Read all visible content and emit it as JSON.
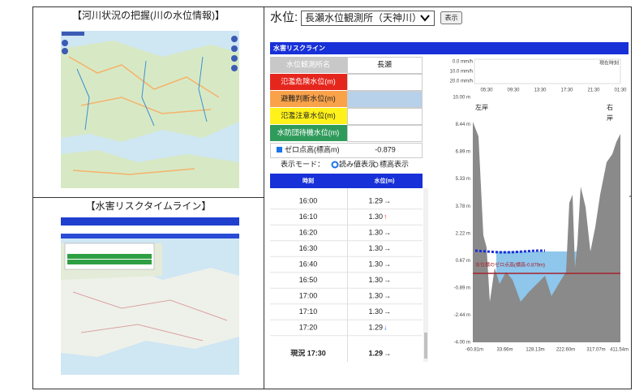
{
  "left_panel": {
    "river_title": "【河川状況の把握(川の水位情報)】",
    "timeline_title": "【水害リスクタイムライン】"
  },
  "station_selector": {
    "label": "水位:",
    "selected": "長瀬水位観測所（天神川）",
    "button": "表示"
  },
  "risk_line": {
    "title": "水害リスクライン",
    "header": [
      "水位観測所名",
      "長瀬"
    ],
    "levels": [
      "氾濫危険水位(m)",
      "避難判断水位(m)",
      "氾濫注意水位(m)",
      "水防団待機水位(m)"
    ],
    "zero_point": {
      "label": "ゼロ点高(標高m)",
      "value": "-0.879"
    },
    "display_mode": {
      "label": "表示モード：",
      "options": [
        "読み値表示",
        "標高表示"
      ]
    }
  },
  "timeline_table": {
    "header": [
      "時刻",
      "水位(m)"
    ],
    "rows": [
      [
        "16:00",
        "1.29",
        "→"
      ],
      [
        "16:10",
        "1.30",
        "↑"
      ],
      [
        "16:20",
        "1.30",
        "→"
      ],
      [
        "16:30",
        "1.30",
        "→"
      ],
      [
        "16:40",
        "1.30",
        "→"
      ],
      [
        "16:50",
        "1.30",
        "→"
      ],
      [
        "17:00",
        "1.30",
        "→"
      ],
      [
        "17:10",
        "1.30",
        "→"
      ],
      [
        "17:20",
        "1.29",
        "↓"
      ]
    ],
    "current": [
      "現況 17:30",
      "1.29",
      "→"
    ]
  },
  "rain_chart": {
    "y_labels": [
      "0.0 mm/h",
      "10.0 mm/h",
      "20.0 mm/h"
    ],
    "now_label": "現在時刻",
    "x_labels": [
      "05:30",
      "09:30",
      "13:30",
      "17:30",
      "21:30",
      "01:30"
    ]
  },
  "cross_section": {
    "y_labels": [
      "10.00 m",
      "8.44 m",
      "6.89 m",
      "5.33 m",
      "3.78 m",
      "2.22 m",
      "0.67 m",
      "-0.89 m",
      "-2.44 m",
      "-4.00 m"
    ],
    "x_labels": [
      "-60.81m",
      "33.66m",
      "128.13m",
      "222.60m",
      "317.07m",
      "411.54m"
    ],
    "left_bank": "左岸",
    "right_bank": [
      "右",
      "岸"
    ],
    "zero_label": "水位標のゼロ点高(標高-0.879m)"
  }
}
